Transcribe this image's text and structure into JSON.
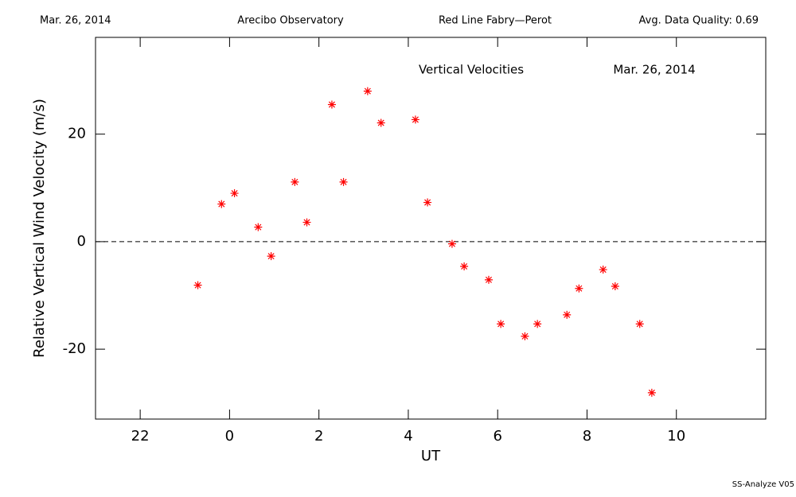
{
  "header": {
    "left": "Mar. 26, 2014",
    "center_left": "Arecibo Observatory",
    "center_right": "Red Line Fabry—Perot",
    "right": "Avg. Data Quality: 0.69"
  },
  "footer": "SS-Analyze V05",
  "chart_data": {
    "type": "scatter",
    "annotations": [
      "Vertical Velocities",
      "Mar. 26, 2014"
    ],
    "x_label": "UT",
    "y_label": "Relative Vertical Wind Velocity (m/s)",
    "color": "#ff0000",
    "x": [
      -0.71,
      -0.18,
      0.11,
      0.64,
      0.93,
      1.46,
      1.73,
      2.29,
      2.55,
      3.09,
      3.39,
      4.16,
      4.43,
      4.98,
      5.25,
      5.8,
      6.07,
      6.61,
      6.89,
      7.55,
      7.82,
      8.36,
      8.63,
      9.18,
      9.45
    ],
    "values": [
      -8.1,
      7.0,
      9.0,
      2.7,
      -2.7,
      11.1,
      3.6,
      25.5,
      11.1,
      28.0,
      22.1,
      22.7,
      7.3,
      -0.4,
      -4.6,
      -7.1,
      -15.3,
      -17.6,
      -15.3,
      -13.6,
      -8.7,
      -5.2,
      -8.3,
      -15.3,
      -28.1
    ],
    "xlim": [
      -3,
      12
    ],
    "xticks": [
      {
        "value": -2,
        "label": "22"
      },
      0,
      2,
      4,
      6,
      8,
      10
    ],
    "ylim": [
      -33,
      38
    ],
    "yticks": [
      -20,
      0,
      20
    ],
    "reference_line": 0
  }
}
